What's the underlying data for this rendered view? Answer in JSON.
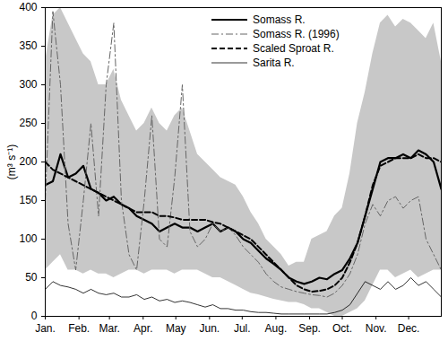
{
  "chart_data": {
    "type": "line",
    "ylabel": "(m³ s⁻¹)",
    "x": [
      1,
      8,
      15,
      22,
      29,
      36,
      43,
      50,
      57,
      64,
      71,
      78,
      85,
      92,
      99,
      106,
      113,
      120,
      127,
      134,
      141,
      148,
      155,
      162,
      169,
      176,
      183,
      190,
      197,
      204,
      211,
      218,
      225,
      232,
      239,
      246,
      253,
      260,
      267,
      274,
      281,
      288,
      295,
      302,
      309,
      316,
      323,
      330,
      337,
      344,
      351,
      358,
      365
    ],
    "xlim": [
      1,
      365
    ],
    "xticks": [
      {
        "value": 1,
        "label": "Jan."
      },
      {
        "value": 32,
        "label": "Feb."
      },
      {
        "value": 60,
        "label": "Mar."
      },
      {
        "value": 91,
        "label": "Apr."
      },
      {
        "value": 121,
        "label": "May"
      },
      {
        "value": 152,
        "label": "Jun."
      },
      {
        "value": 182,
        "label": "Jul."
      },
      {
        "value": 213,
        "label": "Aug."
      },
      {
        "value": 244,
        "label": "Sep."
      },
      {
        "value": 274,
        "label": "Oct."
      },
      {
        "value": 305,
        "label": "Nov."
      },
      {
        "value": 335,
        "label": "Dec."
      }
    ],
    "ylim": [
      0,
      400
    ],
    "yticks": [
      0,
      50,
      100,
      150,
      200,
      250,
      300,
      350,
      400
    ],
    "legend": "top",
    "band": {
      "color": "#c8c8c8",
      "lower": [
        60,
        70,
        80,
        60,
        60,
        55,
        60,
        55,
        55,
        50,
        55,
        60,
        60,
        55,
        60,
        60,
        60,
        55,
        60,
        60,
        60,
        55,
        50,
        50,
        45,
        40,
        35,
        30,
        28,
        25,
        22,
        20,
        18,
        18,
        15,
        10,
        10,
        5,
        0,
        0,
        5,
        10,
        20,
        40,
        60,
        60,
        50,
        55,
        60,
        50,
        55,
        60,
        60
      ],
      "upper": [
        330,
        390,
        400,
        380,
        360,
        340,
        330,
        300,
        300,
        320,
        280,
        260,
        240,
        250,
        270,
        250,
        240,
        260,
        270,
        240,
        210,
        200,
        190,
        180,
        175,
        170,
        155,
        135,
        120,
        100,
        90,
        80,
        65,
        70,
        70,
        100,
        105,
        110,
        130,
        140,
        185,
        250,
        290,
        340,
        380,
        390,
        375,
        385,
        380,
        370,
        360,
        380,
        330
      ]
    },
    "series": [
      {
        "name": "Somass R.",
        "color": "#000000",
        "line_style": "solid",
        "values": [
          170,
          175,
          210,
          180,
          185,
          195,
          165,
          160,
          150,
          155,
          145,
          140,
          130,
          125,
          120,
          110,
          115,
          120,
          115,
          115,
          110,
          115,
          120,
          110,
          115,
          110,
          100,
          95,
          85,
          75,
          68,
          60,
          50,
          45,
          42,
          45,
          50,
          48,
          55,
          60,
          75,
          95,
          130,
          165,
          200,
          205,
          205,
          210,
          205,
          215,
          210,
          200,
          165
        ]
      },
      {
        "name": "Somass R. (1996)",
        "color": "#666666",
        "line_style": "dashdot",
        "values": [
          150,
          395,
          300,
          120,
          60,
          150,
          250,
          130,
          300,
          380,
          150,
          80,
          60,
          150,
          260,
          100,
          90,
          180,
          300,
          110,
          90,
          100,
          120,
          110,
          115,
          105,
          90,
          80,
          70,
          55,
          45,
          38,
          35,
          32,
          30,
          28,
          27,
          25,
          30,
          40,
          55,
          80,
          120,
          145,
          130,
          150,
          155,
          140,
          150,
          155,
          100,
          80,
          60
        ]
      },
      {
        "name": "Scaled Sproat R.",
        "color": "#000000",
        "line_style": "dashed",
        "values": [
          200,
          190,
          185,
          180,
          175,
          170,
          165,
          160,
          155,
          150,
          145,
          140,
          135,
          135,
          135,
          130,
          130,
          128,
          125,
          125,
          125,
          125,
          122,
          120,
          115,
          110,
          105,
          100,
          90,
          80,
          70,
          60,
          50,
          40,
          35,
          32,
          33,
          35,
          40,
          50,
          70,
          95,
          130,
          170,
          195,
          200,
          205,
          205,
          205,
          210,
          205,
          205,
          200
        ]
      },
      {
        "name": "Sarita R.",
        "color": "#000000",
        "line_style": "solid",
        "values": [
          35,
          45,
          40,
          38,
          35,
          30,
          35,
          30,
          28,
          30,
          25,
          25,
          28,
          22,
          25,
          20,
          22,
          18,
          20,
          18,
          15,
          12,
          15,
          10,
          10,
          8,
          8,
          6,
          5,
          5,
          4,
          3,
          3,
          3,
          3,
          3,
          3,
          3,
          5,
          8,
          15,
          30,
          45,
          40,
          35,
          45,
          35,
          40,
          50,
          40,
          45,
          35,
          25
        ]
      }
    ]
  }
}
